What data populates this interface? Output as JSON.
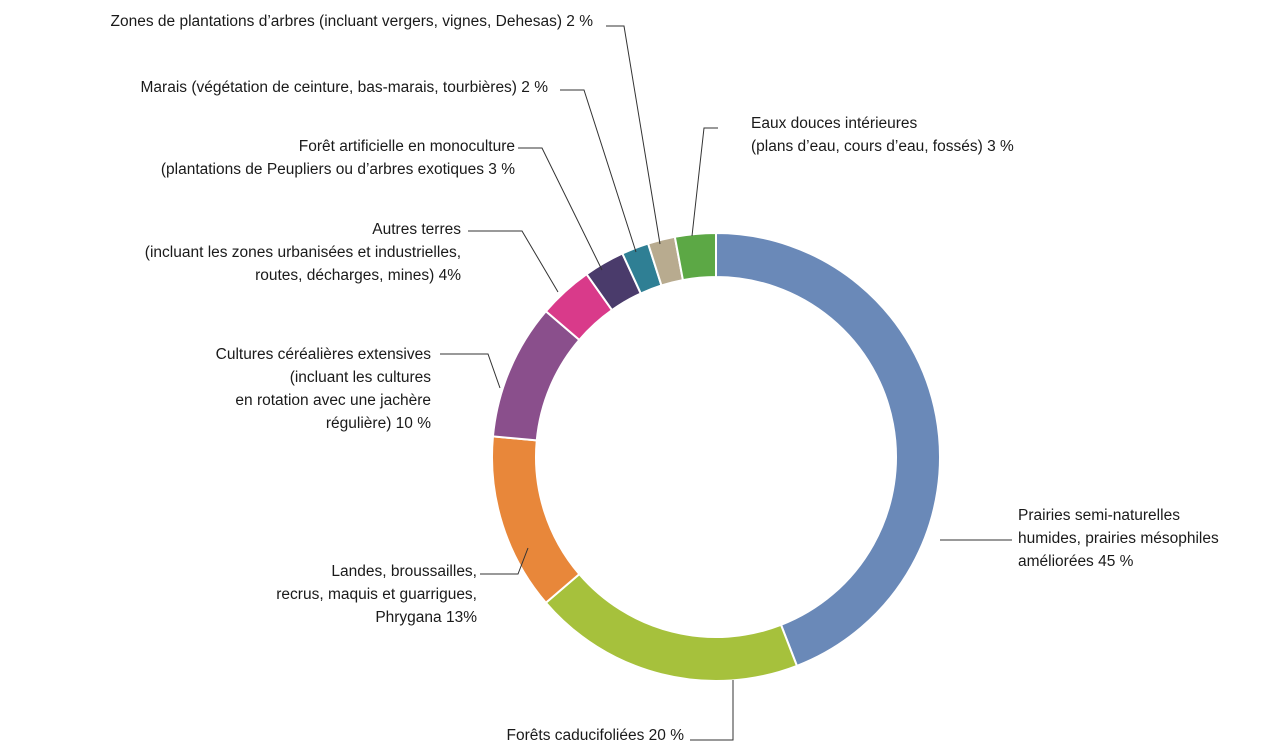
{
  "chart_data": {
    "type": "pie",
    "donut": true,
    "slices": [
      {
        "lines": [
          "Prairies semi-naturelles",
          "humides, prairies mésophiles",
          "améliorées 45 %"
        ],
        "value": 45,
        "color": "#6a89b8"
      },
      {
        "lines": [
          "Forêts caducifoliées 20 %"
        ],
        "value": 20,
        "color": "#a6c13c"
      },
      {
        "lines": [
          "Landes, broussailles,",
          "recrus, maquis et guarrigues,",
          "Phrygana 13%"
        ],
        "value": 13,
        "color": "#e8873a"
      },
      {
        "lines": [
          "Cultures céréalières extensives",
          "(incluant les cultures",
          "en rotation avec une jachère",
          "régulière) 10 %"
        ],
        "value": 10,
        "color": "#8a4f8c"
      },
      {
        "lines": [
          "Autres terres",
          "(incluant les zones urbanisées et industrielles,",
          "routes, décharges, mines) 4%"
        ],
        "value": 4,
        "color": "#d93a8a"
      },
      {
        "lines": [
          "Forêt artificielle en monoculture",
          "(plantations de Peupliers ou d’arbres exotiques 3 %"
        ],
        "value": 3,
        "color": "#4a3b6b"
      },
      {
        "lines": [
          "Marais (végétation de ceinture, bas-marais, tourbières) 2 %"
        ],
        "value": 2,
        "color": "#2f7f94"
      },
      {
        "lines": [
          "Zones de plantations d’arbres (incluant vergers, vignes, Dehesas) 2 %"
        ],
        "value": 2,
        "color": "#b8ab8f"
      },
      {
        "lines": [
          "Eaux douces intérieures",
          "(plans d’eau, cours d’eau, fossés) 3 %"
        ],
        "value": 3,
        "color": "#5ca845"
      }
    ]
  }
}
